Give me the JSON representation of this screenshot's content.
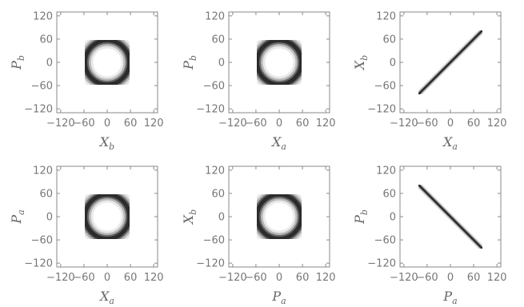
{
  "figure": {
    "colors": {
      "density": "#000000",
      "frame": "#8a8a8a",
      "tick_text": "#777777",
      "label_text": "#666666"
    }
  },
  "chart_data": [
    {
      "type": "heatmap",
      "shape": "ring",
      "xlabel": {
        "base": "X",
        "sub": "b"
      },
      "ylabel": {
        "base": "P",
        "sub": "b"
      },
      "xlim": [
        -130,
        130
      ],
      "ylim": [
        -130,
        130
      ],
      "xticks": [
        -120,
        -60,
        0,
        60,
        120
      ],
      "yticks": [
        -120,
        -60,
        0,
        60,
        120
      ],
      "xtick_labels": [
        "−120",
        "−60",
        "0",
        "60",
        "120"
      ],
      "ytick_labels": [
        "−120",
        "−60",
        "0",
        "60",
        "120"
      ],
      "center": [
        0,
        0
      ],
      "radius": 57,
      "width": 19
    },
    {
      "type": "heatmap",
      "shape": "ring",
      "xlabel": {
        "base": "X",
        "sub": "a"
      },
      "ylabel": {
        "base": "P",
        "sub": "b"
      },
      "xlim": [
        -130,
        130
      ],
      "ylim": [
        -130,
        130
      ],
      "xticks": [
        -120,
        -60,
        0,
        60,
        120
      ],
      "yticks": [
        -120,
        -60,
        0,
        60,
        120
      ],
      "xtick_labels": [
        "−120",
        "−60",
        "0",
        "60",
        "120"
      ],
      "ytick_labels": [
        "−120",
        "−60",
        "0",
        "60",
        "120"
      ],
      "center": [
        0,
        0
      ],
      "radius": 57,
      "width": 19
    },
    {
      "type": "heatmap",
      "shape": "line",
      "xlabel": {
        "base": "X",
        "sub": "a"
      },
      "ylabel": {
        "base": "X",
        "sub": "b"
      },
      "xlim": [
        -130,
        130
      ],
      "ylim": [
        -130,
        130
      ],
      "xticks": [
        -120,
        -60,
        0,
        60,
        120
      ],
      "yticks": [
        -120,
        -60,
        0,
        60,
        120
      ],
      "xtick_labels": [
        "−120",
        "−60",
        "0",
        "60",
        "120"
      ],
      "ytick_labels": [
        "−120",
        "−60",
        "0",
        "60",
        "120"
      ],
      "slope": 1,
      "extent": [
        -82,
        82
      ],
      "thickness": 6
    },
    {
      "type": "heatmap",
      "shape": "ring",
      "xlabel": {
        "base": "X",
        "sub": "a"
      },
      "ylabel": {
        "base": "P",
        "sub": "a"
      },
      "xlim": [
        -130,
        130
      ],
      "ylim": [
        -130,
        130
      ],
      "xticks": [
        -120,
        -60,
        0,
        60,
        120
      ],
      "yticks": [
        -120,
        -60,
        0,
        60,
        120
      ],
      "xtick_labels": [
        "−120",
        "−60",
        "0",
        "60",
        "120"
      ],
      "ytick_labels": [
        "−120",
        "−60",
        "0",
        "60",
        "120"
      ],
      "center": [
        0,
        0
      ],
      "radius": 57,
      "width": 19
    },
    {
      "type": "heatmap",
      "shape": "ring",
      "xlabel": {
        "base": "P",
        "sub": "a"
      },
      "ylabel": {
        "base": "X",
        "sub": "b"
      },
      "xlim": [
        -130,
        130
      ],
      "ylim": [
        -130,
        130
      ],
      "xticks": [
        -120,
        -60,
        0,
        60,
        120
      ],
      "yticks": [
        -120,
        -60,
        0,
        60,
        120
      ],
      "xtick_labels": [
        "−120",
        "−60",
        "0",
        "60",
        "120"
      ],
      "ytick_labels": [
        "−120",
        "−60",
        "0",
        "60",
        "120"
      ],
      "center": [
        0,
        0
      ],
      "radius": 57,
      "width": 19
    },
    {
      "type": "heatmap",
      "shape": "line",
      "xlabel": {
        "base": "P",
        "sub": "a"
      },
      "ylabel": {
        "base": "P",
        "sub": "b"
      },
      "xlim": [
        -130,
        130
      ],
      "ylim": [
        -130,
        130
      ],
      "xticks": [
        -120,
        -60,
        0,
        60,
        120
      ],
      "yticks": [
        -120,
        -60,
        0,
        60,
        120
      ],
      "xtick_labels": [
        "−120",
        "−60",
        "0",
        "60",
        "120"
      ],
      "ytick_labels": [
        "−120",
        "−60",
        "0",
        "60",
        "120"
      ],
      "slope": -1,
      "extent": [
        -82,
        82
      ],
      "thickness": 6
    }
  ]
}
